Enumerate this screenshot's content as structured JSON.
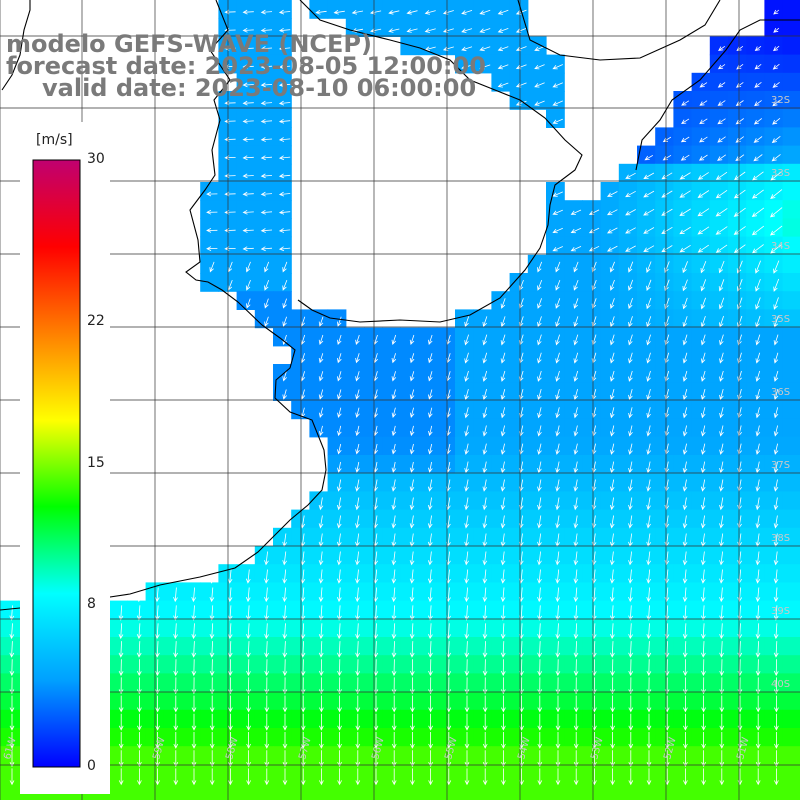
{
  "title": {
    "line1": "modelo GEFS-WAVE (NCEP)",
    "line2": "forecast date: 2023-08-05 12:00:00",
    "line3": "valid date: 2023-08-10 06:00:00"
  },
  "colorbar": {
    "unit": "[m/s]",
    "ticks": [
      {
        "label": "30",
        "value": 30
      },
      {
        "label": "22",
        "value": 22
      },
      {
        "label": "15",
        "value": 15
      },
      {
        "label": "8",
        "value": 8
      },
      {
        "label": "0",
        "value": 0
      }
    ],
    "stops": [
      "#0000ff",
      "#00a0ff",
      "#00ffff",
      "#00ff00",
      "#ffff00",
      "#ff8000",
      "#ff0000",
      "#c00070"
    ]
  },
  "lat_labels": [
    "32S",
    "33S",
    "34S",
    "35S",
    "36S",
    "37S",
    "38S",
    "39S",
    "40S"
  ],
  "lon_labels": [
    "61W",
    "60W",
    "59W",
    "58W",
    "57W",
    "56W",
    "55W",
    "54W",
    "53W",
    "52W",
    "51W"
  ],
  "colors": {
    "land": "#ffffff",
    "grid": "#333333",
    "coast": "#000000",
    "arrow": "#ffffff",
    "title": "#7a7a7a"
  }
}
